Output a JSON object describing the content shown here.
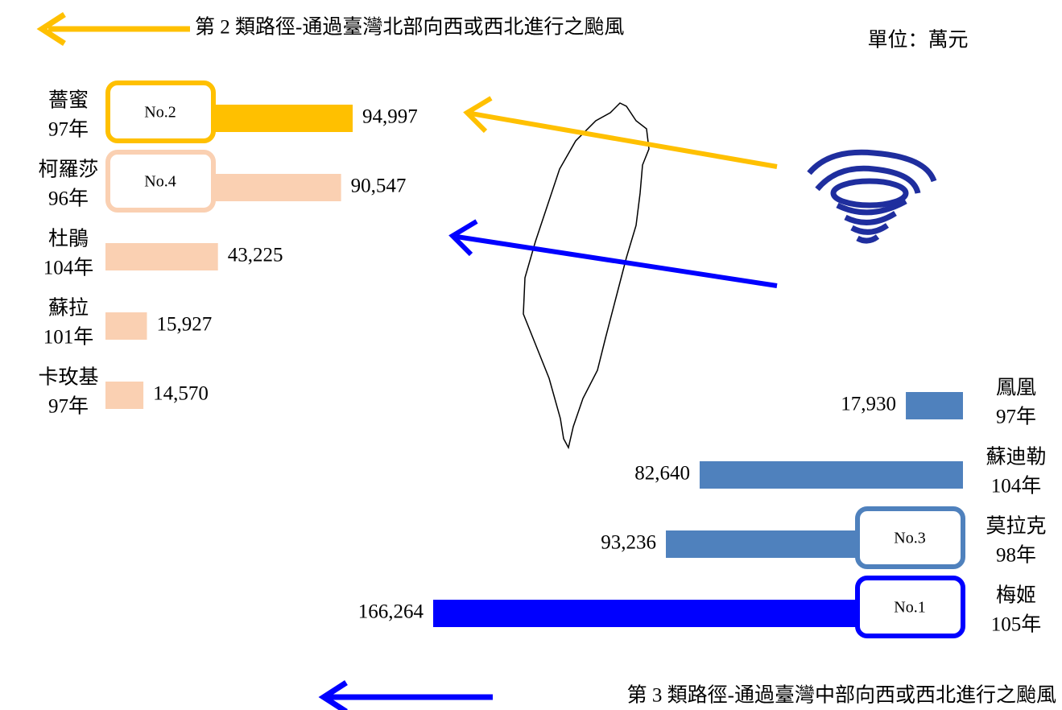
{
  "unit": "單位：萬元",
  "chart_data": [
    {
      "type": "bar",
      "orientation": "horizontal",
      "title": "第 2 類路徑-通過臺灣北部向西或西北進行之颱風",
      "categories": [
        "薔蜜",
        "柯羅莎",
        "杜鵑",
        "蘇拉",
        "卡玫基"
      ],
      "years": [
        "97年",
        "96年",
        "104年",
        "101年",
        "97年"
      ],
      "values": [
        94997,
        90547,
        43225,
        15927,
        14570
      ],
      "value_labels": [
        "94,997",
        "90,547",
        "43,225",
        "15,927",
        "14,570"
      ],
      "rank_labels": [
        "No.2",
        "No.4",
        null,
        null,
        null
      ],
      "colors": [
        "#ffc000",
        "#fad0b2",
        "#fad0b2",
        "#fad0b2",
        "#fad0b2"
      ]
    },
    {
      "type": "bar",
      "orientation": "horizontal",
      "title": "第 3 類路徑-通過臺灣中部向西或西北進行之颱風",
      "categories": [
        "鳳凰",
        "蘇迪勒",
        "莫拉克",
        "梅姬"
      ],
      "years": [
        "97年",
        "104年",
        "98年",
        "105年"
      ],
      "values": [
        17930,
        82640,
        93236,
        166264
      ],
      "value_labels": [
        "17,930",
        "82,640",
        "93,236",
        "166,264"
      ],
      "rank_labels": [
        null,
        null,
        "No.3",
        "No.1"
      ],
      "colors": [
        "#4f81bd",
        "#4f81bd",
        "#4f81bd",
        "#0000ff"
      ]
    }
  ]
}
